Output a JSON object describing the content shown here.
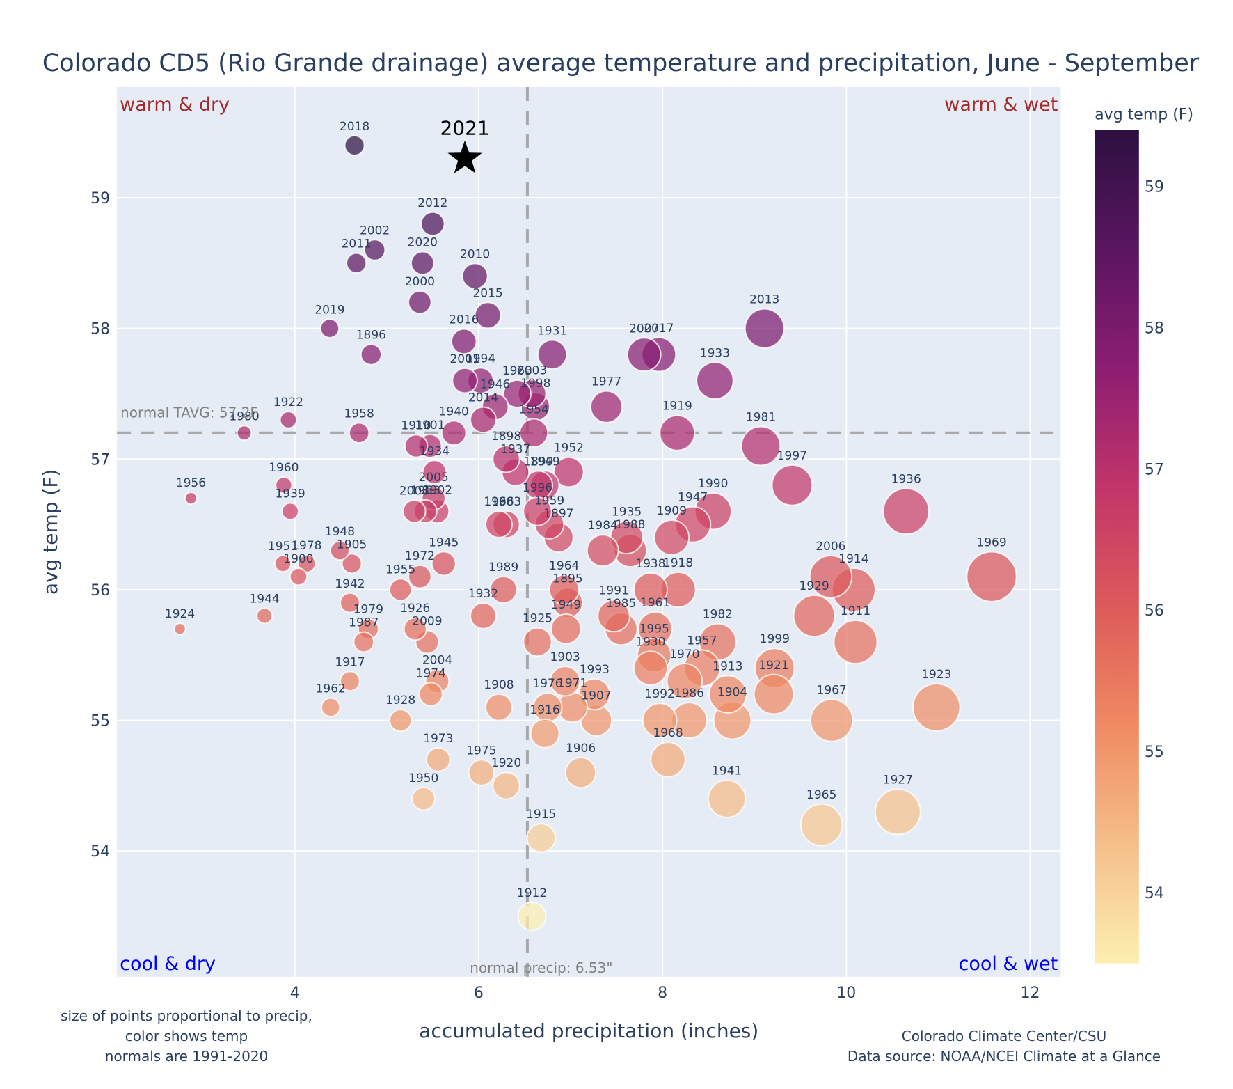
{
  "chart_data": {
    "type": "scatter",
    "title": "Colorado CD5 (Rio Grande drainage) average temperature and precipitation, June - September",
    "xlabel": "accumulated precipitation (inches)",
    "ylabel": "avg temp (F)",
    "xlim": [
      2.15,
      12.35
    ],
    "ylim": [
      53.05,
      59.8
    ],
    "xticks": [
      4,
      6,
      8,
      10,
      12
    ],
    "yticks": [
      54,
      55,
      56,
      57,
      58,
      59
    ],
    "grid": true,
    "colorbar": {
      "title": "avg temp (F)",
      "range": [
        53.5,
        59.4
      ],
      "ticks": [
        54,
        55,
        56,
        57,
        58,
        59
      ],
      "colorscale": [
        "#fcefb0",
        "#f5bf8a",
        "#ef8a62",
        "#dd5a5a",
        "#c2346a",
        "#8c1d72",
        "#5a1660",
        "#2d1040"
      ]
    },
    "size_encoding": "precip",
    "normals": {
      "tavg": 57.2,
      "tavg_label": "normal TAVG: 57.2F",
      "precip": 6.53,
      "precip_label": "normal precip: 6.53\""
    },
    "quadrants": {
      "top_left": "warm & dry",
      "top_right": "warm & wet",
      "bottom_left": "cool & dry",
      "bottom_right": "cool & wet",
      "warm_color": "#a52a2a",
      "cool_color": "#0000ff"
    },
    "highlight": {
      "label": "2021",
      "x": 5.85,
      "y": 59.3,
      "marker": "star"
    },
    "points": [
      {
        "year": "2018",
        "x": 4.65,
        "y": 59.4
      },
      {
        "year": "2012",
        "x": 5.5,
        "y": 58.8
      },
      {
        "year": "2002",
        "x": 4.87,
        "y": 58.6
      },
      {
        "year": "2011",
        "x": 4.67,
        "y": 58.5
      },
      {
        "year": "2020",
        "x": 5.39,
        "y": 58.5
      },
      {
        "year": "2010",
        "x": 5.96,
        "y": 58.4
      },
      {
        "year": "2000",
        "x": 5.36,
        "y": 58.2
      },
      {
        "year": "2015",
        "x": 6.1,
        "y": 58.1
      },
      {
        "year": "2019",
        "x": 4.38,
        "y": 58.0
      },
      {
        "year": "2013",
        "x": 9.11,
        "y": 58.0
      },
      {
        "year": "2016",
        "x": 5.84,
        "y": 57.9
      },
      {
        "year": "1896",
        "x": 4.83,
        "y": 57.8
      },
      {
        "year": "1931",
        "x": 6.8,
        "y": 57.8
      },
      {
        "year": "2007",
        "x": 7.8,
        "y": 57.8
      },
      {
        "year": "2017",
        "x": 7.96,
        "y": 57.8
      },
      {
        "year": "2001",
        "x": 5.85,
        "y": 57.6
      },
      {
        "year": "1994",
        "x": 6.02,
        "y": 57.6
      },
      {
        "year": "1933",
        "x": 8.57,
        "y": 57.6
      },
      {
        "year": "1963",
        "x": 6.42,
        "y": 57.5
      },
      {
        "year": "2003",
        "x": 6.58,
        "y": 57.5
      },
      {
        "year": "1946",
        "x": 6.18,
        "y": 57.4
      },
      {
        "year": "1998",
        "x": 6.62,
        "y": 57.4
      },
      {
        "year": "1977",
        "x": 7.39,
        "y": 57.4
      },
      {
        "year": "2014",
        "x": 6.05,
        "y": 57.3
      },
      {
        "year": "1922",
        "x": 3.93,
        "y": 57.3
      },
      {
        "year": "1954",
        "x": 6.6,
        "y": 57.2
      },
      {
        "year": "1980",
        "x": 3.45,
        "y": 57.2
      },
      {
        "year": "1958",
        "x": 4.7,
        "y": 57.2
      },
      {
        "year": "1940",
        "x": 5.73,
        "y": 57.2
      },
      {
        "year": "1919",
        "x": 8.16,
        "y": 57.2
      },
      {
        "year": "1910",
        "x": 5.32,
        "y": 57.1
      },
      {
        "year": "1901",
        "x": 5.47,
        "y": 57.1
      },
      {
        "year": "1981",
        "x": 9.07,
        "y": 57.1
      },
      {
        "year": "1898",
        "x": 6.3,
        "y": 57.0
      },
      {
        "year": "1934",
        "x": 5.52,
        "y": 56.9
      },
      {
        "year": "1937",
        "x": 6.4,
        "y": 56.9
      },
      {
        "year": "1952",
        "x": 6.98,
        "y": 56.9
      },
      {
        "year": "1899",
        "x": 6.65,
        "y": 56.8
      },
      {
        "year": "1949",
        "x": 6.72,
        "y": 56.8
      },
      {
        "year": "1997",
        "x": 9.41,
        "y": 56.8
      },
      {
        "year": "2005",
        "x": 5.51,
        "y": 56.7
      },
      {
        "year": "1956",
        "x": 2.87,
        "y": 56.7
      },
      {
        "year": "1960",
        "x": 3.88,
        "y": 56.8
      },
      {
        "year": "1939",
        "x": 3.95,
        "y": 56.6
      },
      {
        "year": "2008",
        "x": 5.3,
        "y": 56.6
      },
      {
        "year": "1953",
        "x": 5.42,
        "y": 56.6
      },
      {
        "year": "1902",
        "x": 5.55,
        "y": 56.6
      },
      {
        "year": "1996",
        "x": 6.64,
        "y": 56.6
      },
      {
        "year": "1936",
        "x": 10.65,
        "y": 56.6
      },
      {
        "year": "1990",
        "x": 8.55,
        "y": 56.6
      },
      {
        "year": "1966",
        "x": 6.22,
        "y": 56.5
      },
      {
        "year": "1983",
        "x": 6.3,
        "y": 56.5
      },
      {
        "year": "1959",
        "x": 6.77,
        "y": 56.5
      },
      {
        "year": "1947",
        "x": 8.33,
        "y": 56.5
      },
      {
        "year": "1897",
        "x": 6.87,
        "y": 56.4
      },
      {
        "year": "1935",
        "x": 7.61,
        "y": 56.4
      },
      {
        "year": "1909",
        "x": 8.1,
        "y": 56.4
      },
      {
        "year": "1984",
        "x": 7.35,
        "y": 56.3
      },
      {
        "year": "1988",
        "x": 7.65,
        "y": 56.3
      },
      {
        "year": "1948",
        "x": 4.49,
        "y": 56.3
      },
      {
        "year": "1951",
        "x": 3.87,
        "y": 56.2
      },
      {
        "year": "1978",
        "x": 4.13,
        "y": 56.2
      },
      {
        "year": "1905",
        "x": 4.62,
        "y": 56.2
      },
      {
        "year": "1945",
        "x": 5.62,
        "y": 56.2
      },
      {
        "year": "1900",
        "x": 4.04,
        "y": 56.1
      },
      {
        "year": "1972",
        "x": 5.36,
        "y": 56.1
      },
      {
        "year": "2006",
        "x": 9.83,
        "y": 56.1
      },
      {
        "year": "1969",
        "x": 11.58,
        "y": 56.1
      },
      {
        "year": "1955",
        "x": 5.15,
        "y": 56.0
      },
      {
        "year": "1989",
        "x": 6.27,
        "y": 56.0
      },
      {
        "year": "1964",
        "x": 6.93,
        "y": 56.0
      },
      {
        "year": "1938",
        "x": 7.87,
        "y": 56.0
      },
      {
        "year": "1918",
        "x": 8.17,
        "y": 56.0
      },
      {
        "year": "1914",
        "x": 10.08,
        "y": 56.0
      },
      {
        "year": "1942",
        "x": 4.6,
        "y": 55.9
      },
      {
        "year": "1895",
        "x": 6.97,
        "y": 55.9
      },
      {
        "year": "1944",
        "x": 3.67,
        "y": 55.8
      },
      {
        "year": "1932",
        "x": 6.05,
        "y": 55.8
      },
      {
        "year": "1991",
        "x": 7.47,
        "y": 55.8
      },
      {
        "year": "1929",
        "x": 9.65,
        "y": 55.8
      },
      {
        "year": "1924",
        "x": 2.75,
        "y": 55.7
      },
      {
        "year": "1979",
        "x": 4.8,
        "y": 55.7
      },
      {
        "year": "1926",
        "x": 5.31,
        "y": 55.7
      },
      {
        "year": "1949b",
        "label": "1949",
        "x": 6.95,
        "y": 55.7
      },
      {
        "year": "1985",
        "x": 7.55,
        "y": 55.7
      },
      {
        "year": "1961",
        "x": 7.92,
        "y": 55.7
      },
      {
        "year": "1987",
        "x": 4.75,
        "y": 55.6
      },
      {
        "year": "2009",
        "x": 5.44,
        "y": 55.6
      },
      {
        "year": "1925",
        "x": 6.64,
        "y": 55.6
      },
      {
        "year": "1982",
        "x": 8.6,
        "y": 55.6
      },
      {
        "year": "1911",
        "x": 10.1,
        "y": 55.6
      },
      {
        "year": "1995",
        "x": 7.91,
        "y": 55.5
      },
      {
        "year": "1930",
        "x": 7.87,
        "y": 55.4
      },
      {
        "year": "1957",
        "x": 8.43,
        "y": 55.4
      },
      {
        "year": "1999",
        "x": 9.22,
        "y": 55.4
      },
      {
        "year": "2004",
        "x": 5.55,
        "y": 55.3
      },
      {
        "year": "1917",
        "x": 4.6,
        "y": 55.3
      },
      {
        "year": "1903",
        "x": 6.94,
        "y": 55.3
      },
      {
        "year": "1970",
        "x": 8.24,
        "y": 55.3
      },
      {
        "year": "1974",
        "x": 5.48,
        "y": 55.2
      },
      {
        "year": "1993",
        "x": 7.26,
        "y": 55.2
      },
      {
        "year": "1913",
        "x": 8.71,
        "y": 55.2
      },
      {
        "year": "1921",
        "x": 9.21,
        "y": 55.2
      },
      {
        "year": "1962",
        "x": 4.39,
        "y": 55.1
      },
      {
        "year": "1908",
        "x": 6.22,
        "y": 55.1
      },
      {
        "year": "1976",
        "x": 6.75,
        "y": 55.1
      },
      {
        "year": "1971",
        "x": 7.02,
        "y": 55.1
      },
      {
        "year": "1923",
        "x": 10.98,
        "y": 55.1
      },
      {
        "year": "1928",
        "x": 5.15,
        "y": 55.0
      },
      {
        "year": "1907",
        "x": 7.28,
        "y": 55.0
      },
      {
        "year": "1992",
        "x": 7.97,
        "y": 55.0
      },
      {
        "year": "1986",
        "x": 8.29,
        "y": 55.0
      },
      {
        "year": "1904",
        "x": 8.76,
        "y": 55.0
      },
      {
        "year": "1967",
        "x": 9.84,
        "y": 55.0
      },
      {
        "year": "1916",
        "x": 6.72,
        "y": 54.9
      },
      {
        "year": "1973",
        "x": 5.56,
        "y": 54.7
      },
      {
        "year": "1968",
        "x": 8.06,
        "y": 54.7
      },
      {
        "year": "1975",
        "x": 6.03,
        "y": 54.6
      },
      {
        "year": "1906",
        "x": 7.11,
        "y": 54.6
      },
      {
        "year": "1920",
        "x": 6.3,
        "y": 54.5
      },
      {
        "year": "1950",
        "x": 5.4,
        "y": 54.4
      },
      {
        "year": "1941",
        "x": 8.7,
        "y": 54.4
      },
      {
        "year": "1927",
        "x": 10.56,
        "y": 54.3
      },
      {
        "year": "1965",
        "x": 9.73,
        "y": 54.2
      },
      {
        "year": "1915",
        "x": 6.68,
        "y": 54.1
      },
      {
        "year": "1912",
        "x": 6.58,
        "y": 53.5
      }
    ]
  },
  "footer": {
    "left_line1": "size of points proportional to precip,",
    "left_line2": "color shows temp",
    "left_line3": "normals are 1991-2020",
    "right_line1": "Colorado Climate Center/CSU",
    "right_line2": "Data source: NOAA/NCEI Climate at a Glance"
  }
}
